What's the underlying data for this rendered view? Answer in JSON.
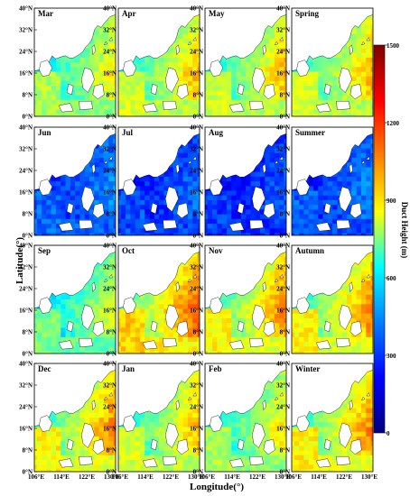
{
  "figure": {
    "xlabel": "Longitude(°)",
    "ylabel": "Latitude(°)",
    "colorbar_label": "Duct Height (m)"
  },
  "panels": [
    "Mar",
    "Apr",
    "May",
    "Spring",
    "Jun",
    "Jul",
    "Aug",
    "Summer",
    "Sep",
    "Oct",
    "Nov",
    "Autumn",
    "Dec",
    "Jan",
    "Feb",
    "Winter"
  ],
  "lat_ticks": [
    "40°N",
    "32°N",
    "24°N",
    "16°N",
    "8°N",
    "0°N"
  ],
  "lon_ticks": [
    "106°E",
    "114°E",
    "122°E",
    "130°E"
  ],
  "colorbar": {
    "ticks": [
      "1500",
      "1200",
      "900",
      "600",
      "300",
      "0"
    ],
    "colors": [
      "#7f0000",
      "#ff0000",
      "#ff7f00",
      "#ffff00",
      "#00ffff",
      "#007fff",
      "#0000ff",
      "#00007f"
    ]
  },
  "map_data": {
    "type": "heatmap",
    "extent": {
      "lon": [
        104,
        132
      ],
      "lat": [
        0,
        40
      ]
    },
    "value_range": [
      0,
      1500
    ],
    "note_intensity_by_panel": {
      "Mar": 0.6,
      "Apr": 0.65,
      "May": 0.65,
      "Spring": 0.65,
      "Jun": 0.25,
      "Jul": 0.22,
      "Aug": 0.2,
      "Summer": 0.24,
      "Sep": 0.55,
      "Oct": 0.75,
      "Nov": 0.7,
      "Autumn": 0.7,
      "Dec": 0.7,
      "Jan": 0.65,
      "Feb": 0.6,
      "Winter": 0.7
    }
  }
}
